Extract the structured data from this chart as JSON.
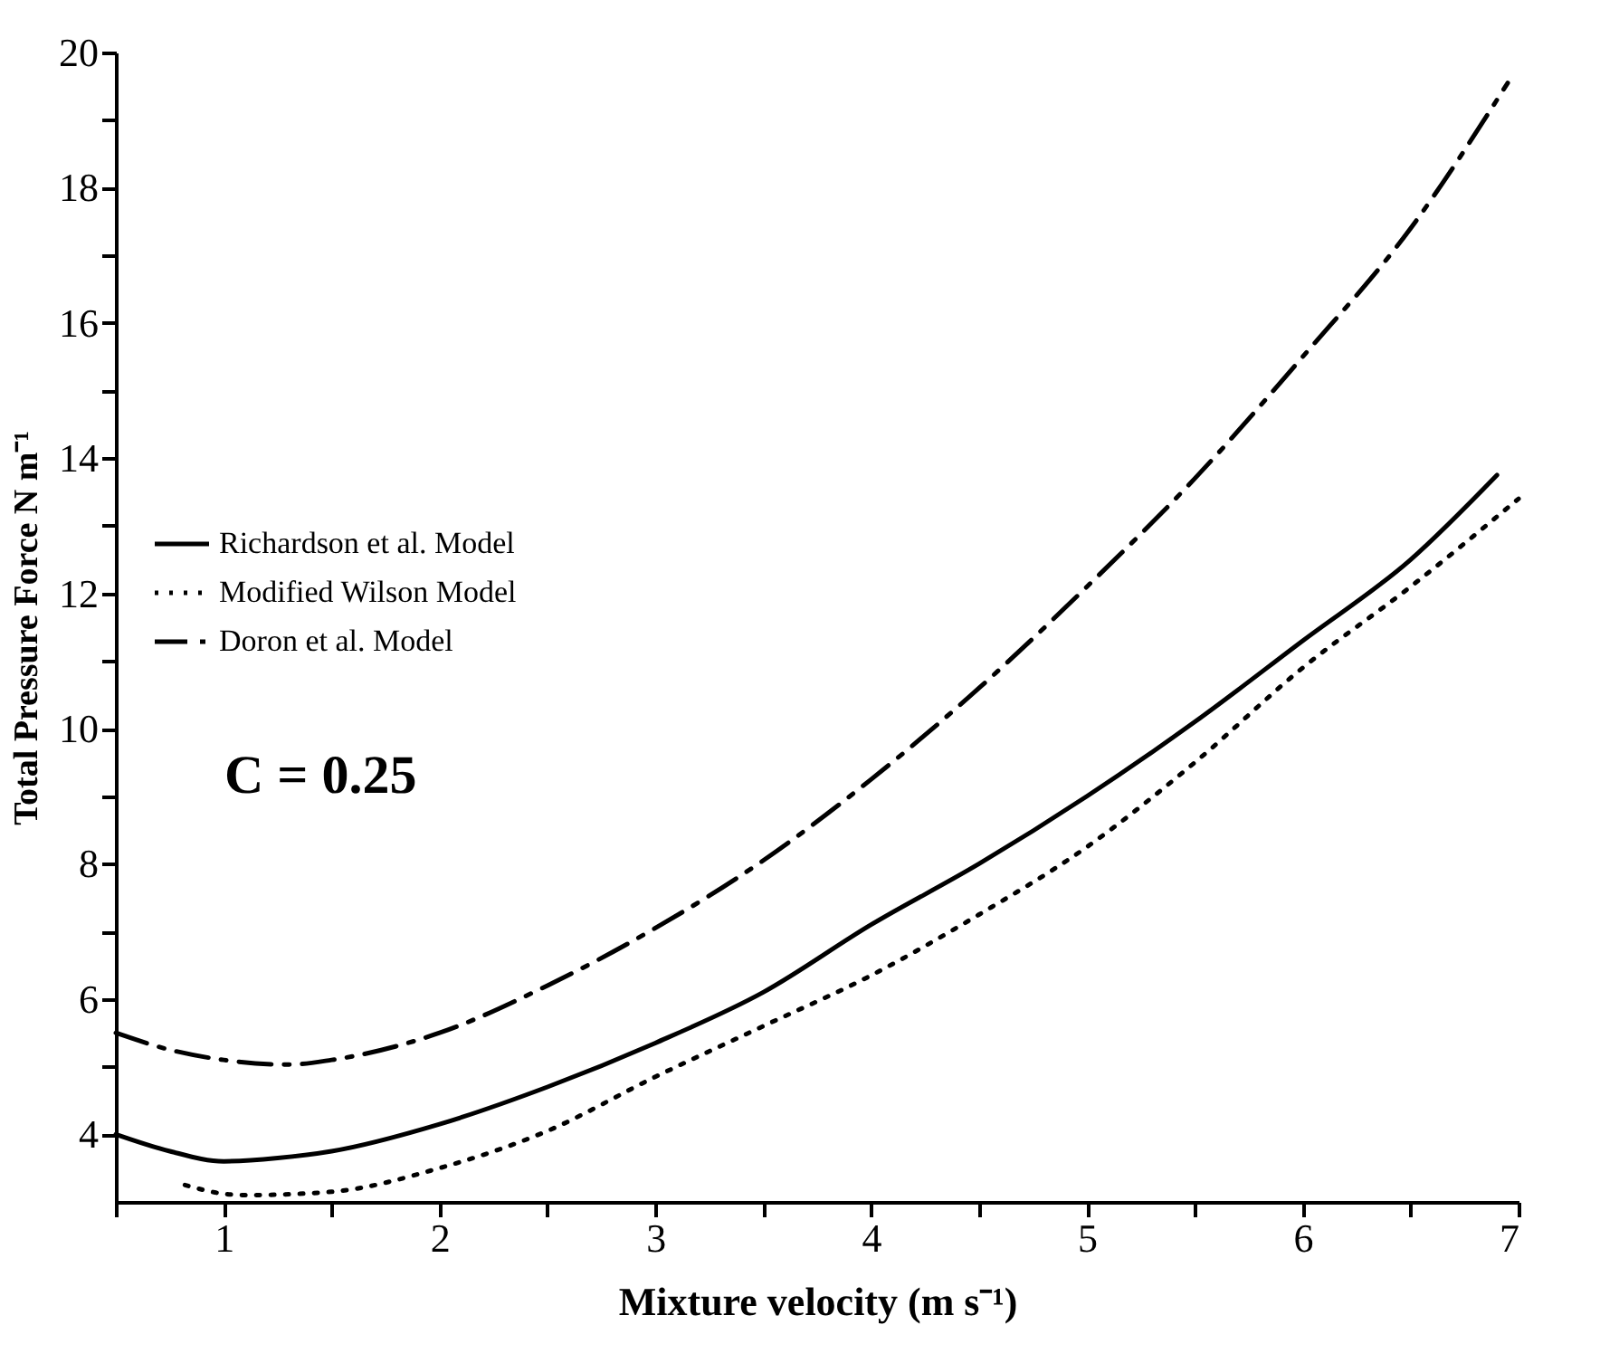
{
  "chart_data": {
    "type": "line",
    "xlabel": "Mixture velocity (m s⁻¹)",
    "ylabel": "Total Pressure Force N m⁻¹",
    "annotations": [
      "C = 0.25"
    ],
    "xlim": [
      0.5,
      7
    ],
    "ylim": [
      3,
      20
    ],
    "xticks": [
      1,
      2,
      3,
      4,
      5,
      6,
      7,
      {
        "value": 0.5,
        "label": null
      },
      {
        "value": 1.5,
        "label": null
      },
      {
        "value": 2.5,
        "label": null
      },
      {
        "value": 3.5,
        "label": null
      },
      {
        "value": 4.5,
        "label": null
      },
      {
        "value": 5.5,
        "label": null
      },
      {
        "value": 6.5,
        "label": null
      }
    ],
    "yticks": [
      4,
      6,
      8,
      10,
      12,
      14,
      16,
      18,
      20,
      {
        "value": 5,
        "label": null
      },
      {
        "value": 7,
        "label": null
      },
      {
        "value": 9,
        "label": null
      },
      {
        "value": 11,
        "label": null
      },
      {
        "value": 13,
        "label": null
      },
      {
        "value": 15,
        "label": null
      },
      {
        "value": 17,
        "label": null
      },
      {
        "value": 19,
        "label": null
      }
    ],
    "grid": false,
    "legend": "left",
    "marker": "none",
    "series": [
      {
        "name": "Richardson et al. Model",
        "color": "#000000",
        "line_style": "solid",
        "x": [
          0.5,
          0.75,
          1.0,
          1.25,
          1.5,
          2,
          2.5,
          3,
          3.5,
          4,
          4.5,
          5,
          5.5,
          6,
          6.5,
          6.9
        ],
        "values": [
          4.0,
          3.75,
          3.6,
          3.65,
          3.75,
          4.15,
          4.7,
          5.35,
          6.1,
          7.1,
          8.0,
          9.0,
          10.1,
          11.3,
          12.5,
          13.75
        ]
      },
      {
        "name": "Modified Wilson Model",
        "color": "#000000",
        "line_style": "dotted",
        "x": [
          0.82,
          1.0,
          1.1,
          1.5,
          2,
          2.5,
          3,
          3.5,
          4,
          4.5,
          5,
          5.5,
          6,
          6.5,
          7
        ],
        "values": [
          3.25,
          3.12,
          3.1,
          3.15,
          3.5,
          4.05,
          4.85,
          5.6,
          6.35,
          7.25,
          8.25,
          9.5,
          10.9,
          12.1,
          13.4
        ]
      },
      {
        "name": "Doron et al. Model",
        "color": "#000000",
        "line_style": "dashed",
        "x": [
          0.5,
          0.75,
          1.0,
          1.3,
          1.5,
          2,
          2.5,
          3,
          3.5,
          4,
          4.5,
          5,
          5.5,
          6,
          6.5,
          6.95
        ],
        "values": [
          5.5,
          5.25,
          5.1,
          5.03,
          5.1,
          5.5,
          6.2,
          7.05,
          8.05,
          9.25,
          10.6,
          12.1,
          13.7,
          15.5,
          17.4,
          19.55
        ]
      }
    ]
  }
}
